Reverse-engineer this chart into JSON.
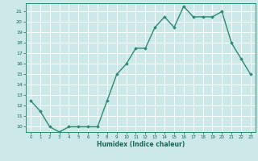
{
  "xlabel": "Humidex (Indice chaleur)",
  "x": [
    0,
    1,
    2,
    3,
    4,
    5,
    6,
    7,
    8,
    9,
    10,
    11,
    12,
    13,
    14,
    15,
    16,
    17,
    18,
    19,
    20,
    21,
    22,
    23
  ],
  "y": [
    12.5,
    11.5,
    10.0,
    9.5,
    10.0,
    10.0,
    10.0,
    10.0,
    12.5,
    15.0,
    16.0,
    17.5,
    17.5,
    19.5,
    20.5,
    19.5,
    21.5,
    20.5,
    20.5,
    20.5,
    21.0,
    18.0,
    16.5,
    15.0
  ],
  "ylim": [
    9.5,
    21.8
  ],
  "xlim": [
    -0.5,
    23.5
  ],
  "yticks": [
    10,
    11,
    12,
    13,
    14,
    15,
    16,
    17,
    18,
    19,
    20,
    21
  ],
  "xticks": [
    0,
    1,
    2,
    3,
    4,
    5,
    6,
    7,
    8,
    9,
    10,
    11,
    12,
    13,
    14,
    15,
    16,
    17,
    18,
    19,
    20,
    21,
    22,
    23
  ],
  "line_color": "#2e8b6e",
  "marker": "D",
  "marker_size": 1.8,
  "bg_color": "#cce8e8",
  "grid_color": "#ffffff",
  "axis_label_color": "#1a6655",
  "tick_color": "#1a6655",
  "line_width": 1.0,
  "spine_color": "#2e8b6e"
}
